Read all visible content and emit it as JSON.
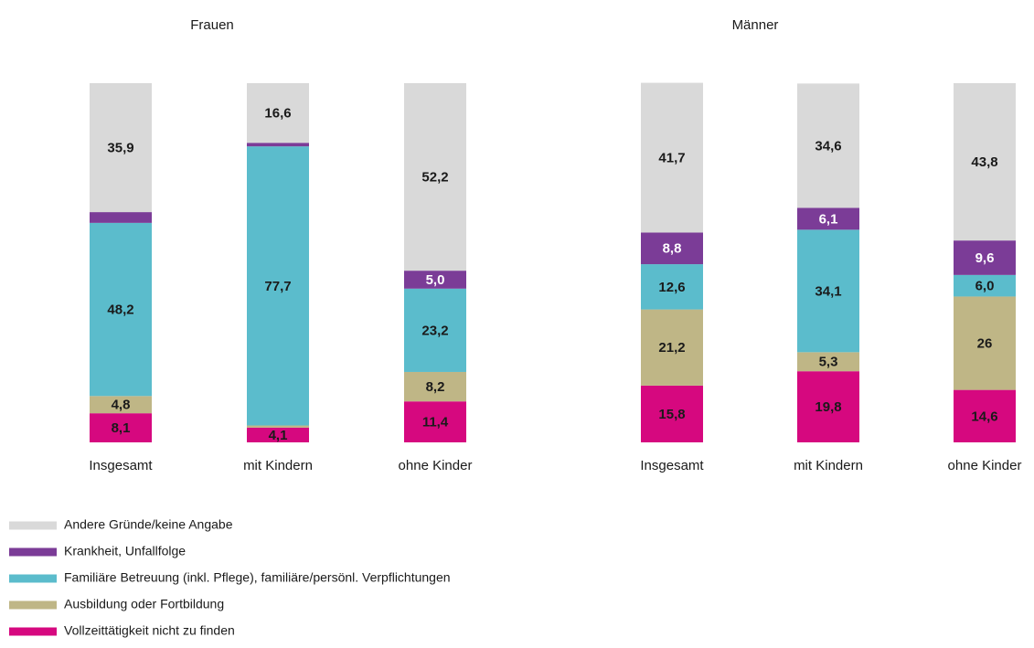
{
  "legend": [
    {
      "name": "Vollzeittätigkeit nicht zu finden",
      "color": "#d6087f"
    },
    {
      "name": "Ausbildung oder Fortbildung",
      "color": "#bfb686"
    },
    {
      "name": "Familiäre Betreuung (inkl. Pflege), familiäre/persönl. Verpflichtungen",
      "color": "#5bbccc"
    },
    {
      "name": "Krankheit, Unfallfolge",
      "color": "#7b3c97"
    },
    {
      "name": "Andere Gründe/keine Angabe",
      "color": "#d9d9d9"
    }
  ],
  "chart_data": [
    {
      "type": "stacked_bar",
      "title": "Frauen",
      "categories": [
        "Insgesamt",
        "mit Kindern",
        "ohne Kinder"
      ],
      "ylim": [
        0,
        100
      ],
      "series": [
        {
          "values": [
            8.1,
            4.1,
            11.4
          ],
          "value_labels": [
            "8,1",
            "4,1",
            "11,4"
          ]
        },
        {
          "values": [
            4.8,
            0.6,
            8.2
          ],
          "value_labels": [
            "4,8",
            null,
            "8,2"
          ]
        },
        {
          "values": [
            48.2,
            77.7,
            23.2
          ],
          "value_labels": [
            "48,2",
            "77,7",
            "23,2"
          ]
        },
        {
          "values": [
            3.0,
            1.0,
            5.0
          ],
          "value_labels": [
            null,
            null,
            "5,0"
          ]
        },
        {
          "values": [
            35.9,
            16.6,
            52.2
          ],
          "value_labels": [
            "35,9",
            "16,6",
            "52,2"
          ]
        }
      ]
    },
    {
      "type": "stacked_bar",
      "title": "Männer",
      "categories": [
        "Insgesamt",
        "mit Kindern",
        "ohne Kinder"
      ],
      "ylim": [
        0,
        100
      ],
      "series": [
        {
          "values": [
            15.8,
            19.8,
            14.6
          ],
          "value_labels": [
            "15,8",
            "19,8",
            "14,6"
          ]
        },
        {
          "values": [
            21.2,
            5.3,
            26
          ],
          "value_labels": [
            "21,2",
            "5,3",
            "26"
          ]
        },
        {
          "values": [
            12.6,
            34.1,
            6.0
          ],
          "value_labels": [
            "12,6",
            "34,1",
            "6,0"
          ]
        },
        {
          "values": [
            8.8,
            6.1,
            9.6
          ],
          "value_labels": [
            "8,8",
            "6,1",
            "9,6"
          ]
        },
        {
          "values": [
            41.7,
            34.6,
            43.8
          ],
          "value_labels": [
            "41,7",
            "34,6",
            "43,8"
          ]
        }
      ]
    }
  ]
}
